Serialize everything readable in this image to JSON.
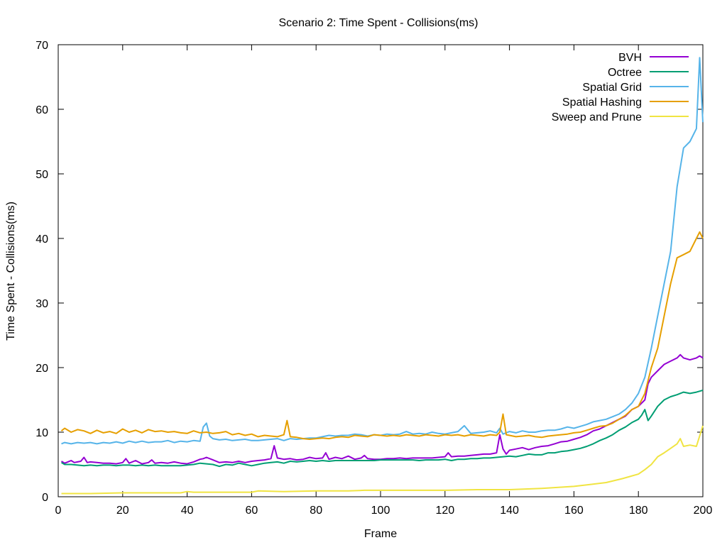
{
  "chart_data": {
    "type": "line",
    "title": "Scenario 2: Time Spent - Collisions(ms)",
    "xlabel": "Frame",
    "ylabel": "Time Spent - Collisions(ms)",
    "xlim": [
      0,
      200
    ],
    "ylim": [
      0,
      70
    ],
    "xticks": [
      0,
      20,
      40,
      60,
      80,
      100,
      120,
      140,
      160,
      180,
      200
    ],
    "yticks": [
      0,
      10,
      20,
      30,
      40,
      50,
      60,
      70
    ],
    "grid": false,
    "legend_position": "top-right",
    "series": [
      {
        "name": "BVH",
        "color": "#9400d3",
        "x": [
          1,
          2,
          3,
          4,
          5,
          6,
          7,
          8,
          9,
          10,
          12,
          14,
          16,
          18,
          20,
          21,
          22,
          24,
          26,
          28,
          29,
          30,
          32,
          34,
          36,
          38,
          40,
          42,
          44,
          45,
          46,
          48,
          50,
          52,
          54,
          56,
          58,
          60,
          62,
          64,
          66,
          67,
          68,
          70,
          72,
          74,
          76,
          78,
          80,
          82,
          83,
          84,
          86,
          88,
          90,
          92,
          94,
          95,
          96,
          98,
          100,
          102,
          104,
          106,
          108,
          110,
          112,
          114,
          116,
          118,
          120,
          121,
          122,
          124,
          126,
          128,
          130,
          132,
          134,
          136,
          137,
          138,
          139,
          140,
          142,
          144,
          146,
          148,
          150,
          152,
          154,
          156,
          158,
          160,
          162,
          164,
          166,
          168,
          170,
          172,
          174,
          176,
          178,
          180,
          182,
          183,
          184,
          186,
          188,
          190,
          192,
          193,
          194,
          196,
          198,
          199,
          200
        ],
        "y": [
          5.5,
          5.2,
          5.4,
          5.6,
          5.3,
          5.4,
          5.5,
          6.1,
          5.3,
          5.4,
          5.3,
          5.2,
          5.2,
          5.1,
          5.3,
          5.9,
          5.2,
          5.6,
          5.1,
          5.3,
          5.7,
          5.2,
          5.3,
          5.2,
          5.4,
          5.2,
          5.1,
          5.4,
          5.8,
          5.9,
          6.1,
          5.7,
          5.3,
          5.4,
          5.3,
          5.5,
          5.3,
          5.5,
          5.6,
          5.7,
          5.9,
          7.9,
          6.0,
          5.8,
          5.9,
          5.7,
          5.8,
          6.1,
          5.9,
          6.0,
          6.8,
          5.8,
          6.1,
          5.9,
          6.3,
          5.8,
          6.0,
          6.4,
          5.9,
          5.8,
          5.8,
          5.9,
          5.9,
          6.0,
          5.9,
          6.0,
          6.0,
          6.0,
          6.0,
          6.1,
          6.2,
          6.8,
          6.2,
          6.3,
          6.3,
          6.4,
          6.5,
          6.6,
          6.6,
          6.8,
          9.6,
          7.4,
          6.6,
          7.2,
          7.4,
          7.6,
          7.3,
          7.6,
          7.8,
          7.9,
          8.2,
          8.5,
          8.6,
          8.9,
          9.2,
          9.6,
          10.2,
          10.5,
          11.0,
          11.5,
          12.0,
          12.5,
          13.5,
          14.0,
          15.0,
          17.5,
          18.5,
          19.5,
          20.5,
          21.0,
          21.5,
          22.0,
          21.5,
          21.2,
          21.5,
          21.8,
          21.5
        ]
      },
      {
        "name": "Octree",
        "color": "#009e73",
        "x": [
          1,
          2,
          4,
          6,
          8,
          10,
          12,
          14,
          16,
          18,
          20,
          22,
          24,
          26,
          28,
          30,
          32,
          34,
          36,
          38,
          40,
          42,
          44,
          46,
          48,
          50,
          52,
          54,
          56,
          58,
          60,
          62,
          64,
          66,
          68,
          70,
          72,
          74,
          76,
          78,
          80,
          82,
          84,
          86,
          88,
          90,
          92,
          94,
          96,
          98,
          100,
          102,
          104,
          106,
          108,
          110,
          112,
          114,
          116,
          118,
          120,
          122,
          124,
          126,
          128,
          130,
          132,
          134,
          136,
          138,
          140,
          142,
          144,
          146,
          148,
          150,
          152,
          154,
          156,
          158,
          160,
          162,
          164,
          166,
          168,
          170,
          172,
          174,
          176,
          178,
          180,
          181,
          182,
          183,
          184,
          186,
          188,
          190,
          192,
          194,
          196,
          198,
          200
        ],
        "y": [
          5.3,
          5.0,
          5.0,
          4.9,
          4.8,
          4.9,
          4.8,
          4.9,
          4.9,
          4.8,
          4.9,
          4.9,
          4.8,
          4.9,
          4.8,
          4.9,
          4.8,
          4.8,
          4.8,
          4.8,
          4.9,
          5.0,
          5.2,
          5.1,
          5.0,
          4.7,
          5.0,
          4.9,
          5.2,
          5.0,
          4.8,
          5.0,
          5.2,
          5.3,
          5.4,
          5.2,
          5.5,
          5.4,
          5.5,
          5.6,
          5.5,
          5.6,
          5.5,
          5.6,
          5.6,
          5.6,
          5.6,
          5.6,
          5.6,
          5.6,
          5.7,
          5.7,
          5.7,
          5.7,
          5.7,
          5.7,
          5.6,
          5.7,
          5.7,
          5.7,
          5.8,
          5.6,
          5.8,
          5.8,
          5.9,
          5.9,
          6.0,
          6.0,
          6.1,
          6.2,
          6.3,
          6.2,
          6.4,
          6.6,
          6.5,
          6.5,
          6.8,
          6.8,
          7.0,
          7.1,
          7.3,
          7.5,
          7.8,
          8.2,
          8.7,
          9.1,
          9.6,
          10.3,
          10.8,
          11.5,
          12.0,
          12.6,
          13.5,
          11.8,
          12.5,
          14.0,
          15.0,
          15.5,
          15.8,
          16.2,
          16.0,
          16.2,
          16.5
        ]
      },
      {
        "name": "Spatial Grid",
        "color": "#56b4e9",
        "x": [
          1,
          2,
          4,
          6,
          8,
          10,
          12,
          14,
          16,
          18,
          20,
          22,
          24,
          26,
          28,
          30,
          32,
          34,
          36,
          38,
          40,
          42,
          44,
          45,
          46,
          47,
          48,
          50,
          52,
          54,
          56,
          58,
          60,
          62,
          64,
          66,
          68,
          70,
          72,
          74,
          76,
          78,
          80,
          82,
          84,
          86,
          88,
          90,
          92,
          94,
          96,
          98,
          100,
          102,
          104,
          106,
          108,
          110,
          112,
          114,
          116,
          118,
          120,
          122,
          124,
          126,
          128,
          130,
          132,
          134,
          136,
          137,
          138,
          140,
          142,
          144,
          146,
          148,
          150,
          152,
          154,
          156,
          158,
          160,
          162,
          164,
          166,
          168,
          170,
          172,
          174,
          176,
          178,
          180,
          182,
          184,
          186,
          188,
          190,
          192,
          194,
          196,
          198,
          199,
          200
        ],
        "y": [
          8.2,
          8.4,
          8.2,
          8.4,
          8.3,
          8.4,
          8.2,
          8.4,
          8.3,
          8.5,
          8.3,
          8.6,
          8.4,
          8.6,
          8.4,
          8.5,
          8.5,
          8.7,
          8.4,
          8.6,
          8.5,
          8.7,
          8.6,
          10.8,
          11.4,
          9.4,
          9.0,
          8.8,
          8.9,
          8.7,
          8.8,
          8.9,
          8.7,
          8.7,
          8.8,
          8.9,
          9.0,
          8.7,
          9.0,
          8.9,
          9.0,
          9.1,
          9.1,
          9.3,
          9.5,
          9.4,
          9.5,
          9.5,
          9.7,
          9.6,
          9.4,
          9.6,
          9.5,
          9.7,
          9.6,
          9.7,
          10.1,
          9.7,
          9.8,
          9.7,
          10.0,
          9.8,
          9.7,
          9.9,
          10.1,
          11.0,
          9.8,
          9.9,
          10.0,
          10.2,
          9.9,
          10.6,
          9.7,
          10.1,
          9.9,
          10.2,
          10.0,
          10.0,
          10.2,
          10.3,
          10.3,
          10.5,
          10.8,
          10.6,
          10.9,
          11.2,
          11.6,
          11.8,
          12.0,
          12.4,
          12.8,
          13.5,
          14.5,
          16.0,
          18.5,
          23.0,
          28.0,
          33.0,
          38.0,
          48.0,
          54.0,
          55.0,
          57.0,
          68.0,
          58.0
        ]
      },
      {
        "name": "Spatial Hashing",
        "color": "#e69f00",
        "x": [
          1,
          2,
          4,
          6,
          8,
          10,
          12,
          14,
          16,
          18,
          20,
          22,
          24,
          26,
          28,
          30,
          32,
          34,
          36,
          38,
          40,
          42,
          44,
          46,
          48,
          50,
          52,
          54,
          56,
          58,
          60,
          62,
          64,
          66,
          68,
          70,
          71,
          72,
          74,
          76,
          78,
          80,
          82,
          84,
          86,
          88,
          90,
          92,
          94,
          96,
          98,
          100,
          102,
          104,
          106,
          108,
          110,
          112,
          114,
          116,
          118,
          120,
          122,
          124,
          126,
          128,
          130,
          132,
          134,
          136,
          137,
          138,
          139,
          140,
          142,
          144,
          146,
          148,
          150,
          152,
          154,
          156,
          158,
          160,
          162,
          164,
          166,
          168,
          170,
          172,
          174,
          176,
          178,
          180,
          182,
          184,
          186,
          188,
          190,
          192,
          194,
          196,
          198,
          199,
          200
        ],
        "y": [
          10.2,
          10.6,
          10.0,
          10.4,
          10.2,
          9.8,
          10.3,
          9.9,
          10.1,
          9.8,
          10.5,
          10.0,
          10.3,
          9.9,
          10.4,
          10.1,
          10.2,
          10.0,
          10.1,
          9.9,
          9.8,
          10.2,
          9.9,
          10.0,
          9.8,
          9.9,
          10.1,
          9.6,
          9.8,
          9.5,
          9.7,
          9.3,
          9.5,
          9.4,
          9.3,
          9.6,
          11.8,
          9.3,
          9.2,
          9.0,
          8.9,
          9.0,
          9.1,
          9.0,
          9.2,
          9.3,
          9.2,
          9.5,
          9.4,
          9.3,
          9.6,
          9.5,
          9.4,
          9.5,
          9.4,
          9.6,
          9.5,
          9.4,
          9.6,
          9.5,
          9.4,
          9.6,
          9.5,
          9.6,
          9.4,
          9.6,
          9.5,
          9.4,
          9.6,
          9.5,
          10.0,
          12.8,
          9.6,
          9.5,
          9.3,
          9.4,
          9.5,
          9.3,
          9.2,
          9.4,
          9.5,
          9.6,
          9.7,
          9.9,
          10.0,
          10.3,
          10.6,
          10.9,
          11.0,
          11.4,
          12.0,
          12.6,
          13.5,
          14.0,
          16.0,
          20.0,
          23.0,
          28.0,
          33.0,
          37.0,
          37.5,
          38.0,
          40.0,
          41.0,
          40.0
        ]
      },
      {
        "name": "Sweep and Prune",
        "color": "#f0e442",
        "x": [
          1,
          10,
          20,
          30,
          38,
          40,
          42,
          50,
          58,
          60,
          62,
          70,
          80,
          90,
          95,
          100,
          110,
          120,
          130,
          140,
          150,
          160,
          165,
          170,
          175,
          180,
          182,
          184,
          186,
          188,
          190,
          192,
          193,
          194,
          196,
          198,
          200
        ],
        "y": [
          0.5,
          0.5,
          0.6,
          0.6,
          0.6,
          0.8,
          0.7,
          0.7,
          0.7,
          0.7,
          0.9,
          0.8,
          0.9,
          0.9,
          1.0,
          1.0,
          1.0,
          1.0,
          1.1,
          1.1,
          1.3,
          1.6,
          1.9,
          2.2,
          2.8,
          3.5,
          4.2,
          5.0,
          6.2,
          6.8,
          7.5,
          8.2,
          9.0,
          7.8,
          8.0,
          7.8,
          11.0
        ]
      }
    ]
  }
}
